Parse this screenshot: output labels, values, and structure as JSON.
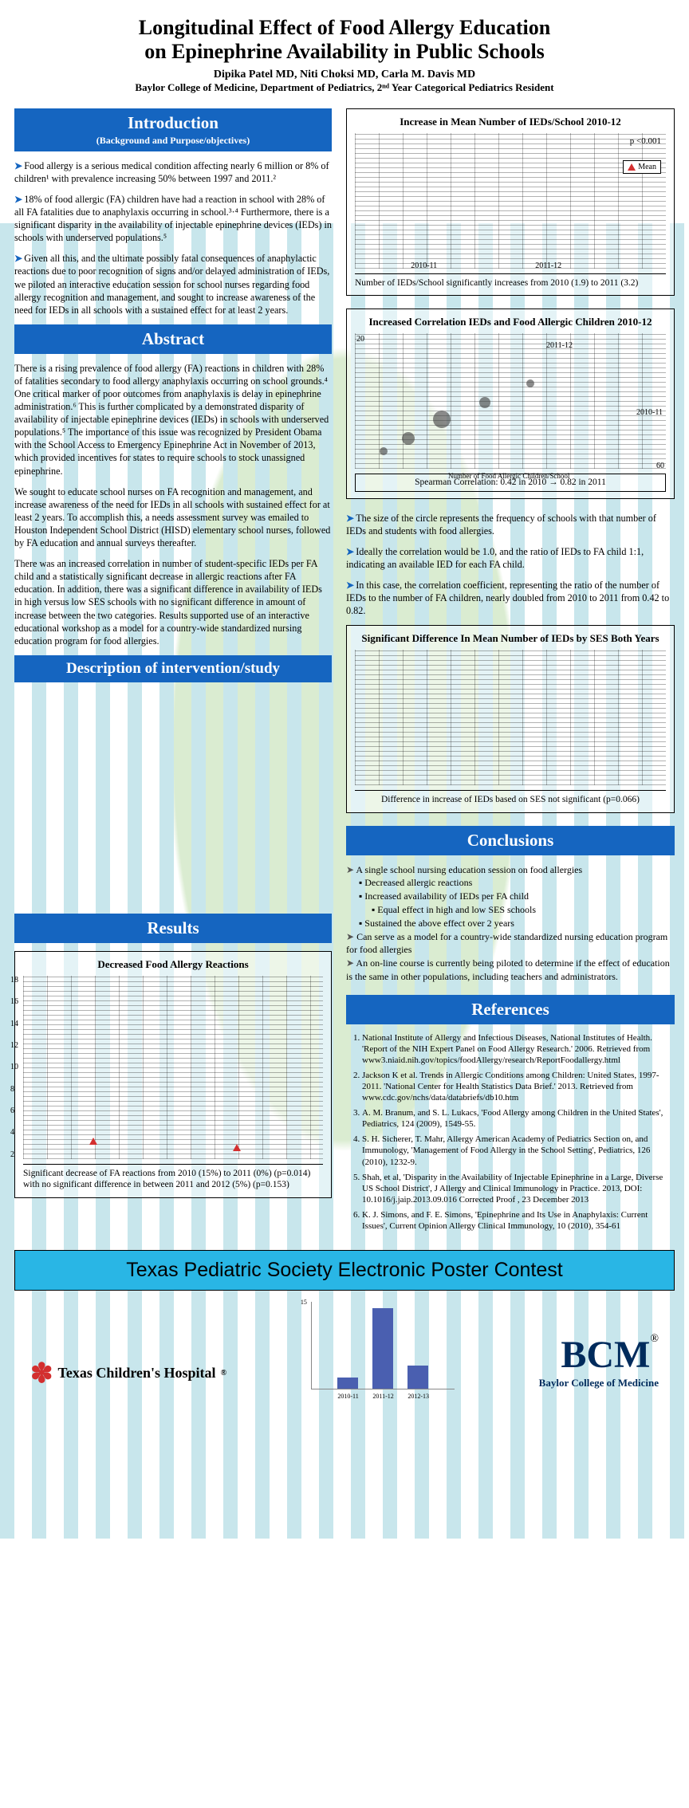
{
  "title_line1": "Longitudinal Effect of Food Allergy Education",
  "title_line2": "on Epinephrine Availability in Public Schools",
  "authors": "Dipika Patel MD, Niti Choksi MD, Carla M. Davis MD",
  "affiliation": "Baylor College of Medicine, Department of Pediatrics, 2ⁿᵈ Year Categorical Pediatrics Resident",
  "sections": {
    "introduction": {
      "title": "Introduction",
      "subtitle": "(Background and Purpose/objectives)"
    },
    "abstract": {
      "title": "Abstract"
    },
    "description": {
      "title": "Description of intervention/study"
    },
    "results": {
      "title": "Results"
    },
    "conclusions": {
      "title": "Conclusions"
    },
    "references": {
      "title": "References"
    }
  },
  "intro_paras": [
    "Food allergy is a serious medical condition affecting nearly 6 million or 8% of children¹ with prevalence increasing 50% between 1997 and 2011.²",
    "18% of food allergic (FA) children have had a reaction in school with 28% of all FA fatalities due to anaphylaxis occurring in school.³·⁴ Furthermore, there is a significant disparity in the availability of injectable epinephrine devices (IEDs) in schools with underserved populations.⁵",
    "Given all this, and the ultimate possibly fatal consequences of anaphylactic reactions due to poor recognition of signs and/or delayed administration of IEDs, we piloted an interactive education session for school nurses regarding food allergy recognition and management, and sought to increase awareness of the need for IEDs in all schools with a sustained effect for at least 2 years."
  ],
  "abstract_paras": [
    "There is a rising prevalence of food allergy (FA) reactions in children with 28% of fatalities secondary to food allergy anaphylaxis occurring on school grounds.⁴ One critical marker of poor outcomes from anaphylaxis is delay in epinephrine administration.⁶ This is further complicated by a demonstrated disparity of availability of injectable epinephrine devices (IEDs) in schools with underserved populations.⁵ The importance of this issue was recognized by President Obama with the School Access to Emergency Epinephrine Act in November of 2013, which provided incentives for states to require schools to stock unassigned epinephrine.",
    "We sought to educate school nurses on FA recognition and management, and increase awareness of the need for IEDs in all schools with sustained effect for at least 2 years. To accomplish this, a needs assessment survey was emailed to Houston Independent School District (HISD) elementary school nurses, followed by FA education and annual surveys thereafter.",
    "There was an increased correlation in number of student-specific IEDs per FA child and a statistically significant decrease in allergic reactions after FA education. In addition, there was a significant difference in availability of IEDs in high versus low SES schools with no significant difference in amount of increase between the two categories. Results supported use of an interactive educational workshop as a model for a country-wide standardized nursing education program for food allergies."
  ],
  "chart1": {
    "title": "Increase in Mean Number of IEDs/School 2010-12",
    "pval": "p <0.001",
    "mean_label": "Mean",
    "x_labels": [
      "2010-11",
      "2011-12"
    ],
    "caption": "Number of IEDs/School significantly increases from 2010 (1.9) to 2011 (3.2)",
    "means": [
      1.9,
      3.2
    ]
  },
  "chart2": {
    "title": "Increased Correlation IEDs and Food Allergic Children 2010-12",
    "y_max": 20,
    "x_max": 60,
    "x_label": "Number of Food Allergic Children/School",
    "series_labels": [
      "2011-12",
      "2010-11"
    ],
    "caption": "Spearman Correlation: 0.42 in 2010 → 0.82 in 2011",
    "notes": [
      "The size of the circle represents the frequency of schools with that number of IEDs and students with food allergies.",
      "Ideally the correlation would be 1.0, and the ratio of IEDs to FA child 1:1, indicating an available IED for each FA child.",
      "In this case, the correlation coefficient, representing the ratio of the number of IEDs to the number of FA children, nearly doubled from 2010 to 2011 from 0.42 to 0.82."
    ]
  },
  "chart3": {
    "title": "Significant Difference In Mean Number of IEDs by SES Both Years",
    "caption": "Difference in increase of IEDs based on SES not significant (p=0.066)"
  },
  "chart4": {
    "title": "Decreased Food Allergy Reactions",
    "y_ticks": [
      18,
      16,
      14,
      12,
      10,
      8,
      6,
      4,
      2
    ],
    "caption": "Significant decrease of FA reactions from 2010 (15%) to 2011 (0%) (p=0.014) with no significant difference in between 2011 and 2012 (5%) (p=0.153)"
  },
  "conclusions": [
    {
      "lvl": 0,
      "text": "A single school nursing education session on food allergies"
    },
    {
      "lvl": 1,
      "text": "Decreased allergic reactions"
    },
    {
      "lvl": 1,
      "text": "Increased availability of IEDs per FA child"
    },
    {
      "lvl": 2,
      "text": "Equal effect in high and low SES schools"
    },
    {
      "lvl": 1,
      "text": "Sustained the above effect over 2 years"
    },
    {
      "lvl": 0,
      "text": "Can serve as a model for a country-wide standardized nursing education program for food allergies"
    },
    {
      "lvl": 0,
      "text": "An on-line course is currently being piloted to determine if the effect of education is the same in other populations, including teachers and administrators."
    }
  ],
  "references": [
    "National Institute of Allergy and Infectious Diseases, National Institutes of Health. 'Report of the NIH Expert Panel on Food Allergy Research.' 2006. Retrieved from www3.niaid.nih.gov/topics/foodAllergy/research/ReportFoodallergy.html",
    "Jackson K et al. Trends in Allergic Conditions among Children: United States, 1997-2011. 'National Center for Health Statistics Data Brief.' 2013. Retrieved from www.cdc.gov/nchs/data/databriefs/db10.htm",
    "A. M. Branum, and S. L. Lukacs, 'Food Allergy among Children in the United States', Pediatrics, 124 (2009), 1549-55.",
    "S. H. Sicherer, T. Mahr, Allergy American Academy of Pediatrics Section on, and Immunology, 'Management of Food Allergy in the School Setting', Pediatrics, 126 (2010), 1232-9.",
    "Shah, et al, 'Disparity in the Availability of Injectable Epinephrine in a Large, Diverse US School District', J Allergy and Clinical Immunology in Practice. 2013, DOI: 10.1016/j.jaip.2013.09.016 Corrected Proof , 23 December 2013",
    "K. J. Simons, and F. E. Simons, 'Epinephrine and Its Use in Anaphylaxis: Current Issues', Current Opinion Allergy Clinical Immunology, 10 (2010), 354-61"
  ],
  "footer_banner": "Texas Pediatric Society Electronic Poster Contest",
  "logos": {
    "tch": "Texas Children's Hospital",
    "bcm_big": "BCM",
    "bcm_sub": "Baylor College of Medicine"
  },
  "mini_chart": {
    "values": [
      1.9,
      14,
      4
    ],
    "labels": [
      "2010-11",
      "2011-12",
      "2012-13"
    ],
    "y_max": 15
  },
  "colors": {
    "header_bg": "#1565c0",
    "banner_bg": "#29b6e5",
    "bcm_navy": "#002b5c",
    "red": "#d32f2f",
    "bar": "#4a5fb0"
  }
}
